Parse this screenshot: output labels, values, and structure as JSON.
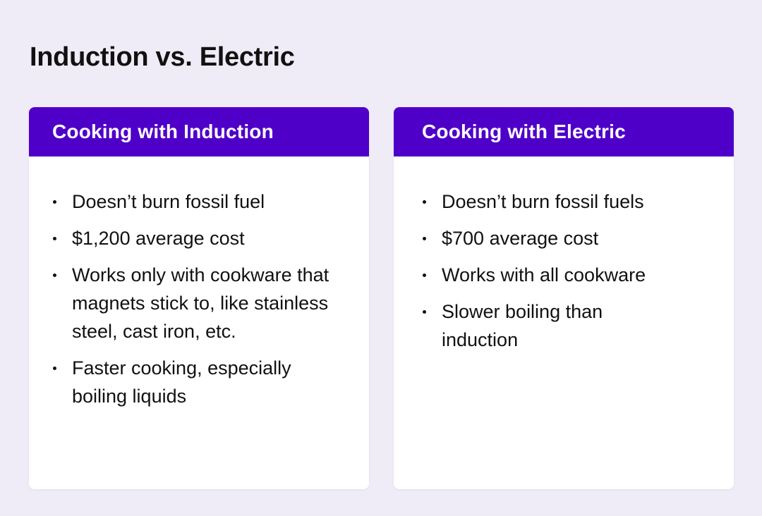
{
  "title": "Induction vs. Electric",
  "cards": [
    {
      "header": "Cooking with Induction",
      "items": [
        "Doesn’t burn fossil fuel",
        "$1,200 average cost",
        "Works only with cookware that magnets stick to, like stainless steel, cast iron, etc.",
        "Faster cooking, especially boiling liquids"
      ]
    },
    {
      "header": "Cooking with Electric",
      "items": [
        "Doesn’t burn fossil fuels",
        "$700 average cost",
        "Works with all cookware",
        "Slower boiling than induction"
      ]
    }
  ],
  "colors": {
    "header_bg": "#4f00c8",
    "page_bg": "#efecf7"
  }
}
